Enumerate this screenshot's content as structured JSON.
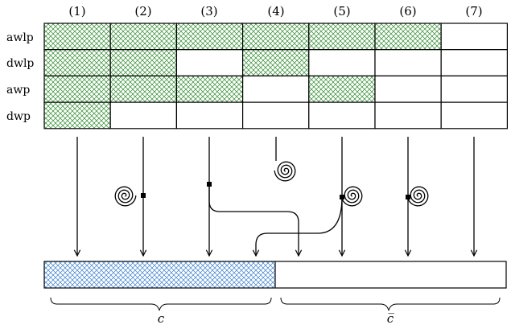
{
  "columns": [
    "(1)",
    "(2)",
    "(3)",
    "(4)",
    "(5)",
    "(6)",
    "(7)"
  ],
  "rows": [
    {
      "label": "awlp",
      "filled": [
        true,
        true,
        true,
        true,
        true,
        true,
        false
      ]
    },
    {
      "label": "dwlp",
      "filled": [
        true,
        true,
        false,
        true,
        false,
        false,
        false
      ]
    },
    {
      "label": "awp",
      "filled": [
        true,
        true,
        true,
        false,
        true,
        false,
        false
      ]
    },
    {
      "label": "dwp",
      "filled": [
        true,
        false,
        false,
        false,
        false,
        false,
        false
      ]
    }
  ],
  "result_bar": {
    "segments": [
      "c",
      "c̅"
    ],
    "filled_columns": 3.5,
    "total_columns": 7
  },
  "colors": {
    "grid_fill": "#2e8b2e",
    "bar_fill": "#3a7fd0",
    "stroke": "#000000"
  },
  "braces": [
    {
      "label": "c"
    },
    {
      "label": "c̅"
    }
  ]
}
